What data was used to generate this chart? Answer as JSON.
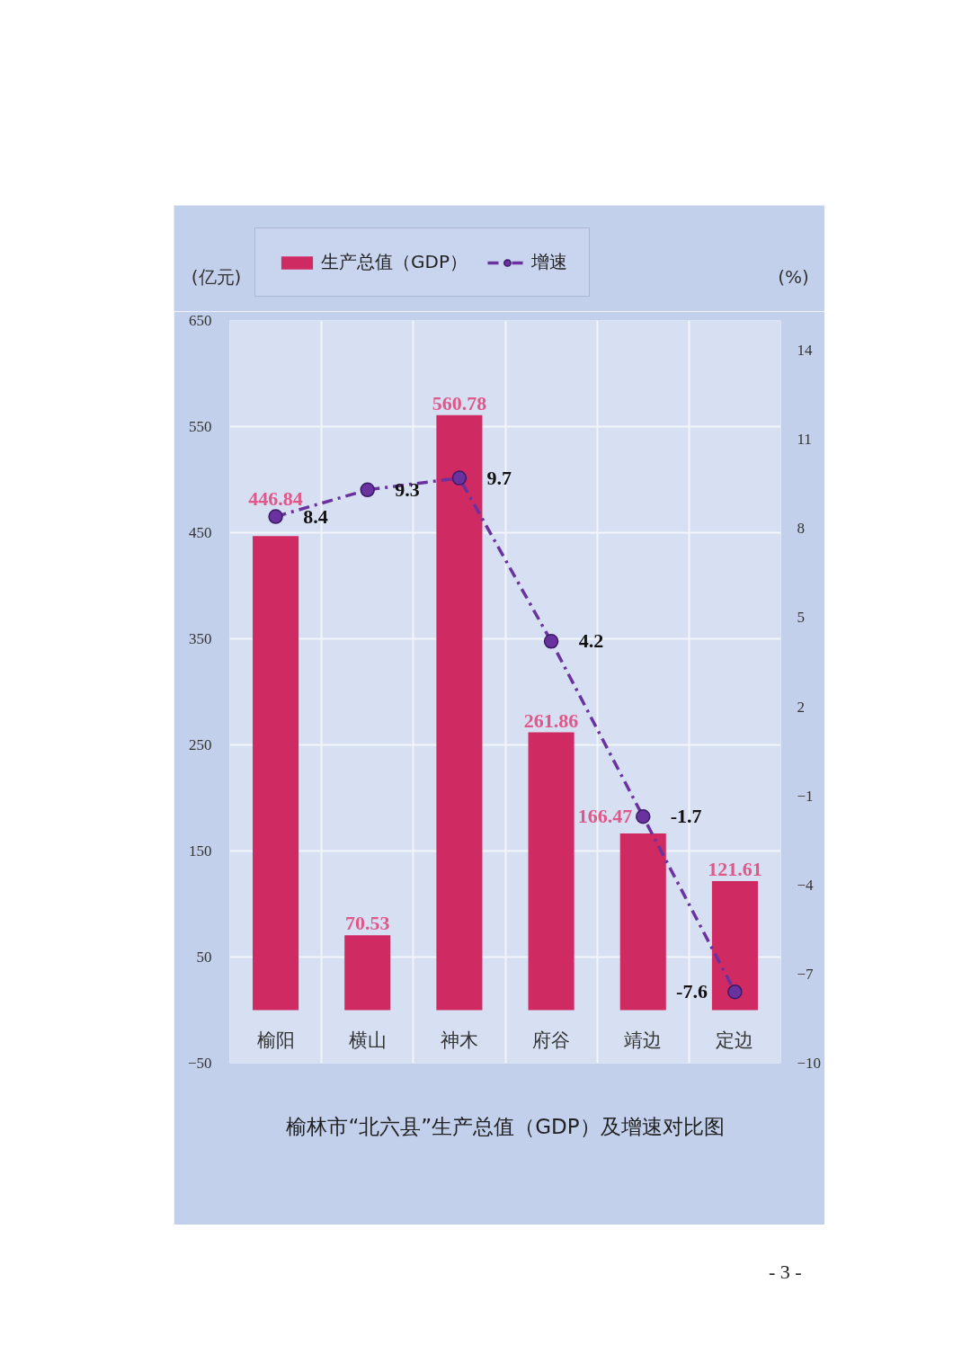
{
  "chart_data": {
    "type": "bar",
    "title": "榆林市“北六县”生产总值（GDP）及增速对比图",
    "ylabel": "(亿元)",
    "y2label": "(%)",
    "categories": [
      "榆阳",
      "横山",
      "神木",
      "府谷",
      "靖边",
      "定边"
    ],
    "series": [
      {
        "name": "生产总值（GDP）",
        "color": "#cf2a62",
        "values": [
          446.84,
          70.53,
          560.78,
          261.86,
          166.47,
          121.61
        ]
      },
      {
        "name": "增速",
        "type": "line",
        "axis": "y2",
        "color": "#6a329f",
        "values": [
          8.4,
          9.3,
          9.7,
          4.2,
          -1.7,
          -7.6
        ]
      }
    ],
    "ylim": [
      -50,
      650
    ],
    "yticks": [
      -50,
      50,
      150,
      250,
      350,
      450,
      550,
      650
    ],
    "y2lim": [
      -10,
      15
    ],
    "y2ticks": [
      -10,
      -7,
      -4,
      -1,
      2,
      5,
      8,
      11,
      14
    ],
    "data_labels": true,
    "grid": true,
    "legend": "top left",
    "marker": "circle",
    "line_style": "dashed",
    "annotations": [
      "- 3 -"
    ]
  }
}
